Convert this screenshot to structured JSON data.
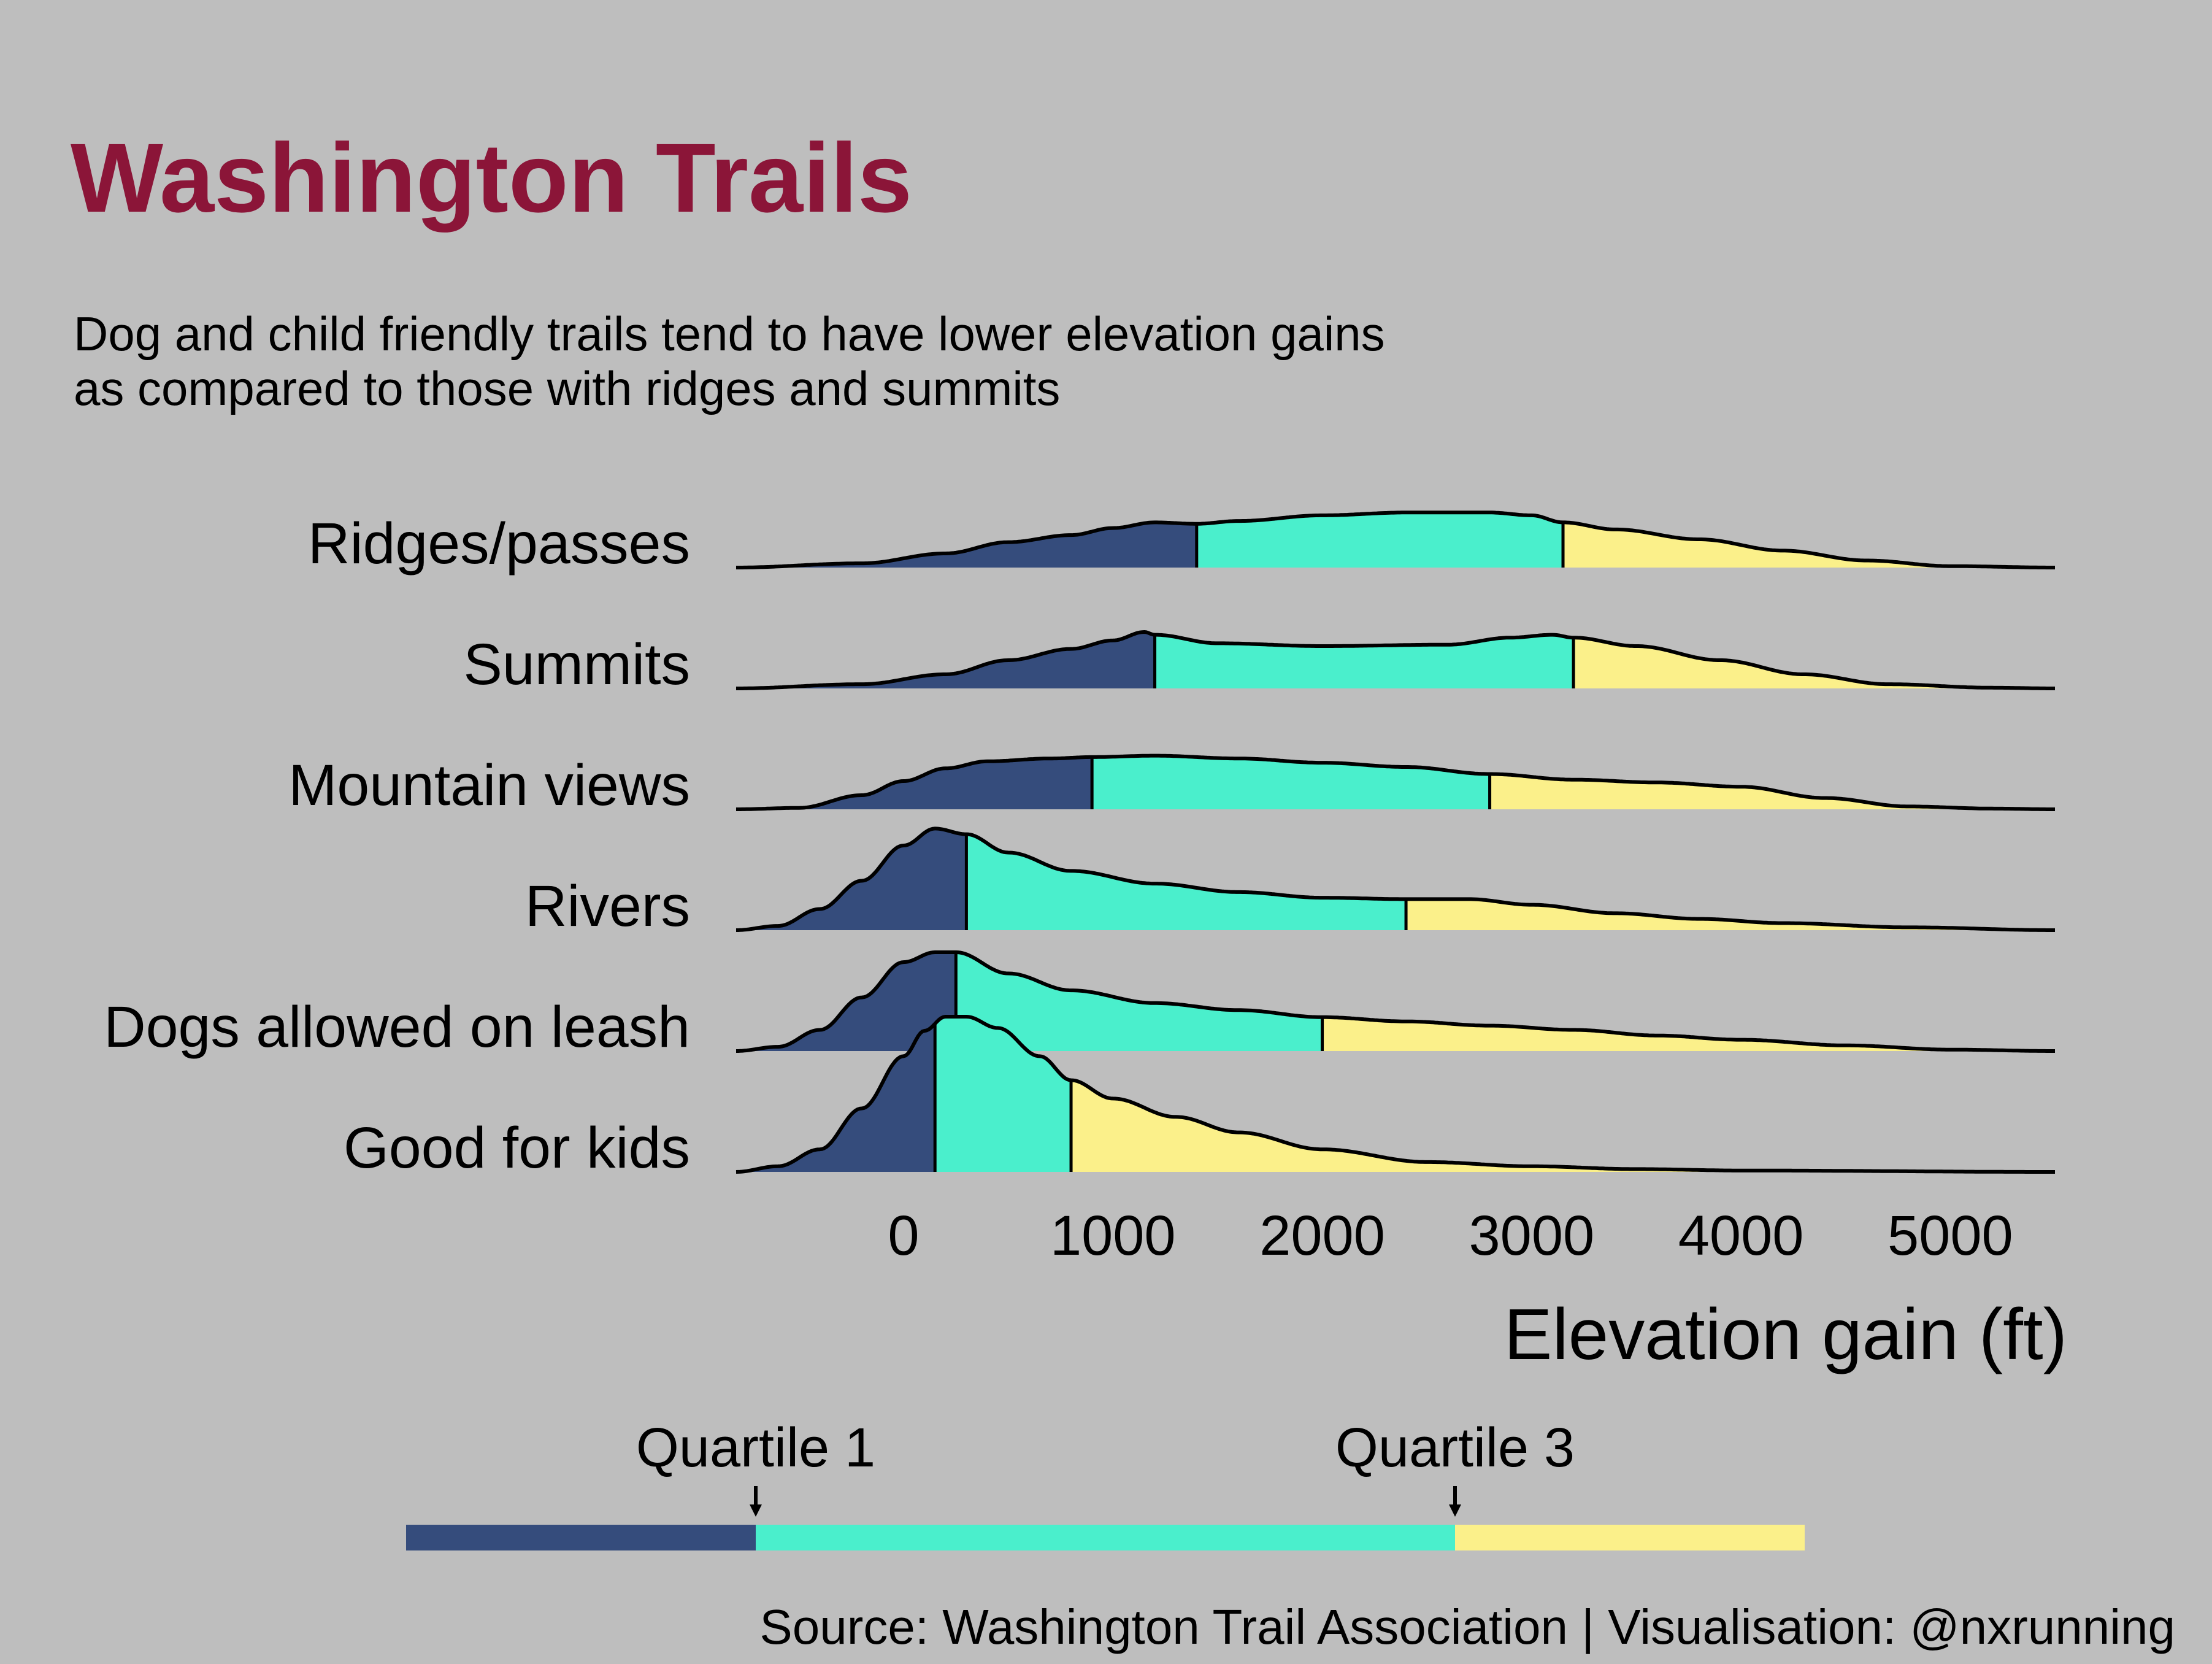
{
  "title": "Washington Trails",
  "subtitle": [
    "Dog and child friendly trails tend to have lower elevation gains",
    "as compared to those with ridges and summits"
  ],
  "caption": "Source: Washington Trail Association | Visualisation: @nxrunning",
  "colors": {
    "background": "#bebebe",
    "title": "#8b1538",
    "quartile_1": "#354c7c",
    "interquartile": "#4aefcc",
    "quartile_3": "#fbf08a",
    "outline": "#000000"
  },
  "chart_data": {
    "type": "ridgeline",
    "xlabel": "Elevation gain (ft)",
    "xlim": [
      -800,
      5500
    ],
    "x_ticks": [
      0,
      1000,
      2000,
      3000,
      4000,
      5000
    ],
    "x_tick_labels": [
      "0",
      "1000",
      "2000",
      "3000",
      "4000",
      "5000"
    ],
    "series": [
      {
        "name": "Ridges/passes",
        "q1": 1400,
        "q3": 3150,
        "density": [
          [
            -800,
            0
          ],
          [
            -200,
            0.03
          ],
          [
            200,
            0.1
          ],
          [
            500,
            0.18
          ],
          [
            800,
            0.23
          ],
          [
            1000,
            0.28
          ],
          [
            1200,
            0.32
          ],
          [
            1400,
            0.31
          ],
          [
            1600,
            0.33
          ],
          [
            2000,
            0.37
          ],
          [
            2400,
            0.39
          ],
          [
            2800,
            0.39
          ],
          [
            3000,
            0.37
          ],
          [
            3150,
            0.32
          ],
          [
            3400,
            0.27
          ],
          [
            3800,
            0.2
          ],
          [
            4200,
            0.12
          ],
          [
            4600,
            0.05
          ],
          [
            5000,
            0.01
          ],
          [
            5500,
            0
          ]
        ]
      },
      {
        "name": "Summits",
        "q1": 1200,
        "q3": 3200,
        "density": [
          [
            -800,
            0
          ],
          [
            -200,
            0.03
          ],
          [
            200,
            0.1
          ],
          [
            500,
            0.2
          ],
          [
            800,
            0.28
          ],
          [
            1000,
            0.34
          ],
          [
            1150,
            0.4
          ],
          [
            1200,
            0.38
          ],
          [
            1500,
            0.32
          ],
          [
            2000,
            0.3
          ],
          [
            2600,
            0.31
          ],
          [
            2900,
            0.36
          ],
          [
            3100,
            0.38
          ],
          [
            3200,
            0.36
          ],
          [
            3500,
            0.3
          ],
          [
            3900,
            0.2
          ],
          [
            4300,
            0.1
          ],
          [
            4700,
            0.03
          ],
          [
            5200,
            0.005
          ],
          [
            5500,
            0
          ]
        ]
      },
      {
        "name": "Mountain views",
        "q1": 900,
        "q3": 2800,
        "density": [
          [
            -800,
            0
          ],
          [
            -500,
            0.01
          ],
          [
            -200,
            0.1
          ],
          [
            0,
            0.2
          ],
          [
            200,
            0.29
          ],
          [
            400,
            0.34
          ],
          [
            700,
            0.36
          ],
          [
            900,
            0.37
          ],
          [
            1200,
            0.38
          ],
          [
            1600,
            0.36
          ],
          [
            2000,
            0.33
          ],
          [
            2400,
            0.3
          ],
          [
            2800,
            0.25
          ],
          [
            3200,
            0.21
          ],
          [
            3600,
            0.19
          ],
          [
            4000,
            0.16
          ],
          [
            4400,
            0.08
          ],
          [
            4800,
            0.02
          ],
          [
            5200,
            0.005
          ],
          [
            5500,
            0
          ]
        ]
      },
      {
        "name": "Rivers",
        "q1": 300,
        "q3": 2400,
        "density": [
          [
            -800,
            0
          ],
          [
            -600,
            0.03
          ],
          [
            -400,
            0.15
          ],
          [
            -200,
            0.35
          ],
          [
            0,
            0.6
          ],
          [
            150,
            0.72
          ],
          [
            300,
            0.68
          ],
          [
            500,
            0.55
          ],
          [
            800,
            0.42
          ],
          [
            1200,
            0.33
          ],
          [
            1600,
            0.27
          ],
          [
            2000,
            0.23
          ],
          [
            2400,
            0.22
          ],
          [
            2700,
            0.22
          ],
          [
            3000,
            0.18
          ],
          [
            3400,
            0.12
          ],
          [
            3800,
            0.08
          ],
          [
            4200,
            0.05
          ],
          [
            4800,
            0.02
          ],
          [
            5500,
            0
          ]
        ]
      },
      {
        "name": "Dogs allowed on leash",
        "q1": 250,
        "q3": 2000,
        "density": [
          [
            -800,
            0
          ],
          [
            -600,
            0.03
          ],
          [
            -400,
            0.15
          ],
          [
            -200,
            0.38
          ],
          [
            0,
            0.63
          ],
          [
            150,
            0.7
          ],
          [
            250,
            0.7
          ],
          [
            500,
            0.55
          ],
          [
            800,
            0.43
          ],
          [
            1200,
            0.34
          ],
          [
            1600,
            0.29
          ],
          [
            2000,
            0.24
          ],
          [
            2400,
            0.21
          ],
          [
            2800,
            0.18
          ],
          [
            3200,
            0.15
          ],
          [
            3600,
            0.11
          ],
          [
            4000,
            0.08
          ],
          [
            4500,
            0.04
          ],
          [
            5000,
            0.01
          ],
          [
            5500,
            0
          ]
        ]
      },
      {
        "name": "Good for kids",
        "q1": 150,
        "q3": 800,
        "density": [
          [
            -800,
            0
          ],
          [
            -600,
            0.04
          ],
          [
            -400,
            0.16
          ],
          [
            -200,
            0.45
          ],
          [
            0,
            0.82
          ],
          [
            100,
            1.0
          ],
          [
            200,
            1.1
          ],
          [
            300,
            1.1
          ],
          [
            450,
            1.02
          ],
          [
            650,
            0.82
          ],
          [
            800,
            0.65
          ],
          [
            1000,
            0.52
          ],
          [
            1300,
            0.39
          ],
          [
            1600,
            0.28
          ],
          [
            2000,
            0.16
          ],
          [
            2500,
            0.07
          ],
          [
            3000,
            0.04
          ],
          [
            3500,
            0.02
          ],
          [
            4000,
            0.01
          ],
          [
            5500,
            0
          ]
        ]
      }
    ],
    "legend": {
      "labels": [
        "Quartile 1",
        "Quartile 3"
      ],
      "position": "bottom"
    }
  }
}
